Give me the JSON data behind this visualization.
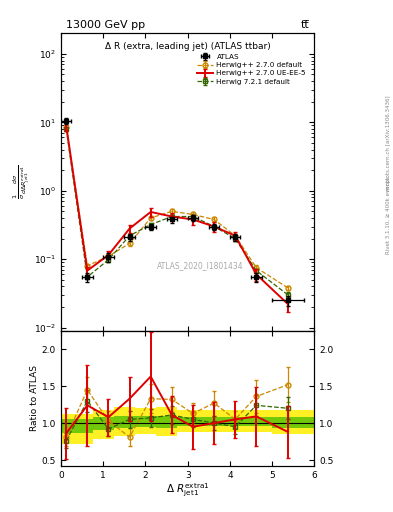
{
  "title_top": "13000 GeV pp",
  "title_right": "tt̅",
  "plot_title": "Δ R (extra, leading jet) (ATLAS ttbar)",
  "watermark": "ATLAS_2020_I1801434",
  "xlabel": "Δ R$_{jet1}^{extra1}$",
  "ylabel_main": "$\\frac{1}{\\sigma}\\frac{d\\sigma}{d\\Delta R_{jet1}^{extra1}}$",
  "ylabel_ratio": "Ratio to ATLAS",
  "right_label": "Rivet 3.1.10, ≥ 400k events",
  "right_label2": "mcplots.cern.ch [arXiv:1306.3436]",
  "xlim": [
    0,
    6
  ],
  "ylim_main": [
    0.009,
    200
  ],
  "ylim_ratio": [
    0.42,
    2.25
  ],
  "atlas_x": [
    0.125,
    0.625,
    1.125,
    1.625,
    2.125,
    2.625,
    3.125,
    3.625,
    4.125,
    4.625,
    5.375
  ],
  "atlas_y": [
    10.5,
    0.055,
    0.107,
    0.21,
    0.3,
    0.38,
    0.4,
    0.3,
    0.21,
    0.055,
    0.025
  ],
  "atlas_yerr": [
    1.2,
    0.008,
    0.015,
    0.025,
    0.03,
    0.04,
    0.04,
    0.03,
    0.025,
    0.008,
    0.004
  ],
  "atlas_xerr": [
    0.125,
    0.125,
    0.125,
    0.125,
    0.125,
    0.125,
    0.125,
    0.125,
    0.125,
    0.125,
    0.375
  ],
  "hw270_x": [
    0.125,
    0.625,
    1.125,
    1.625,
    2.125,
    2.625,
    3.125,
    3.625,
    4.125,
    4.625,
    5.375
  ],
  "hw270_y": [
    8.5,
    0.08,
    0.11,
    0.17,
    0.4,
    0.5,
    0.45,
    0.38,
    0.22,
    0.075,
    0.038
  ],
  "hw270_yerr": [
    0.5,
    0.005,
    0.008,
    0.015,
    0.03,
    0.04,
    0.04,
    0.03,
    0.015,
    0.006,
    0.003
  ],
  "hw270ue_x": [
    0.125,
    0.625,
    1.125,
    1.625,
    2.125,
    2.625,
    3.125,
    3.625,
    4.125,
    4.625,
    5.375
  ],
  "hw270ue_y": [
    9.0,
    0.068,
    0.115,
    0.28,
    0.49,
    0.42,
    0.38,
    0.3,
    0.22,
    0.06,
    0.022
  ],
  "hw270ue_yerr": [
    1.5,
    0.01,
    0.015,
    0.035,
    0.07,
    0.06,
    0.06,
    0.05,
    0.03,
    0.012,
    0.005
  ],
  "hw721_x": [
    0.125,
    0.625,
    1.125,
    1.625,
    2.125,
    2.625,
    3.125,
    3.625,
    4.125,
    4.625,
    5.375
  ],
  "hw721_y": [
    8.0,
    0.055,
    0.098,
    0.22,
    0.32,
    0.42,
    0.42,
    0.3,
    0.2,
    0.068,
    0.03
  ],
  "hw721_yerr": [
    0.5,
    0.004,
    0.007,
    0.015,
    0.02,
    0.03,
    0.03,
    0.02,
    0.015,
    0.005,
    0.003
  ],
  "ratio_hw270_y": [
    0.81,
    1.45,
    1.03,
    0.81,
    1.33,
    1.32,
    1.13,
    1.27,
    1.05,
    1.36,
    1.52
  ],
  "ratio_hw270_yerr": [
    0.12,
    0.18,
    0.14,
    0.12,
    0.2,
    0.17,
    0.14,
    0.17,
    0.12,
    0.22,
    0.24
  ],
  "ratio_hw270ue_y": [
    0.86,
    1.24,
    1.08,
    1.33,
    1.63,
    1.11,
    0.95,
    1.0,
    1.05,
    1.09,
    0.88
  ],
  "ratio_hw270ue_yerr": [
    0.35,
    0.55,
    0.25,
    0.3,
    0.6,
    0.25,
    0.3,
    0.28,
    0.25,
    0.4,
    0.35
  ],
  "ratio_hw721_y": [
    0.76,
    1.3,
    0.92,
    1.05,
    1.07,
    1.11,
    1.05,
    1.0,
    0.95,
    1.24,
    1.2
  ],
  "ratio_hw721_yerr": [
    0.1,
    0.15,
    0.1,
    0.12,
    0.12,
    0.12,
    0.1,
    0.1,
    0.1,
    0.14,
    0.15
  ],
  "band_edges": [
    0.0,
    0.25,
    0.75,
    1.25,
    1.75,
    2.25,
    2.75,
    3.25,
    3.75,
    4.25,
    5.0,
    6.0
  ],
  "band_yellow_low": [
    0.72,
    0.72,
    0.78,
    0.82,
    0.85,
    0.82,
    0.88,
    0.88,
    0.88,
    0.88,
    0.85,
    0.85
  ],
  "band_yellow_high": [
    1.12,
    1.12,
    1.18,
    1.22,
    1.2,
    1.22,
    1.18,
    1.18,
    1.18,
    1.18,
    1.18,
    1.18
  ],
  "band_green_low": [
    0.87,
    0.87,
    0.9,
    0.93,
    0.95,
    0.93,
    0.96,
    0.96,
    0.96,
    0.96,
    0.94,
    0.94
  ],
  "band_green_high": [
    1.05,
    1.05,
    1.08,
    1.1,
    1.1,
    1.1,
    1.08,
    1.08,
    1.08,
    1.08,
    1.08,
    1.08
  ],
  "color_atlas": "#000000",
  "color_hw270": "#cc8800",
  "color_hw270ue": "#dd0000",
  "color_hw721": "#336600",
  "color_band_yellow": "#ffee00",
  "color_band_green": "#44bb00"
}
